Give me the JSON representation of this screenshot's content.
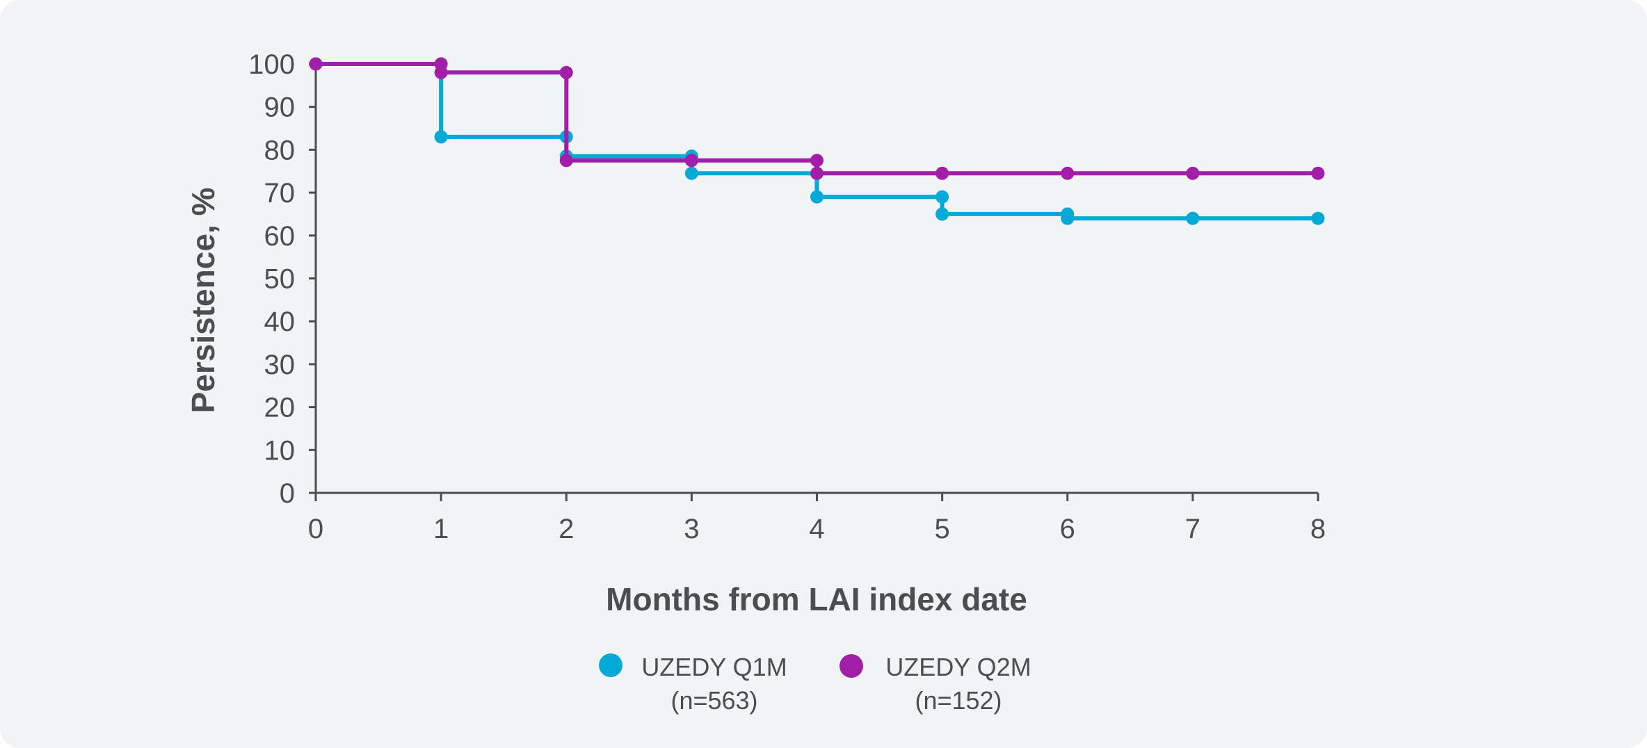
{
  "chart_data": {
    "type": "line",
    "step": true,
    "xlabel": "Months from LAI index date",
    "ylabel": "Persistence, %",
    "xlim": [
      0,
      8
    ],
    "ylim": [
      0,
      100
    ],
    "x_ticks": [
      "0",
      "1",
      "2",
      "3",
      "4",
      "5",
      "6",
      "7",
      "8"
    ],
    "y_ticks": [
      "0",
      "10",
      "20",
      "30",
      "40",
      "50",
      "60",
      "70",
      "80",
      "90",
      "100"
    ],
    "grid": false,
    "legend_position": "bottom-center",
    "series": [
      {
        "name": "UZEDY Q1M",
        "name_line2": "(n=563)",
        "color": "#05a9d6",
        "points": [
          [
            0,
            100
          ],
          [
            1,
            100
          ],
          [
            1,
            83
          ],
          [
            2,
            83
          ],
          [
            2,
            78.5
          ],
          [
            3,
            78.5
          ],
          [
            3,
            74.5
          ],
          [
            4,
            74.5
          ],
          [
            4,
            69
          ],
          [
            5,
            69
          ],
          [
            5,
            65
          ],
          [
            6,
            65
          ],
          [
            6,
            64
          ],
          [
            7,
            64
          ],
          [
            8,
            64
          ]
        ]
      },
      {
        "name": "UZEDY Q2M",
        "name_line2": "(n=152)",
        "color": "#a31ea8",
        "points": [
          [
            0,
            100
          ],
          [
            1,
            100
          ],
          [
            1,
            98
          ],
          [
            2,
            98
          ],
          [
            2,
            77.5
          ],
          [
            3,
            77.5
          ],
          [
            4,
            77.5
          ],
          [
            4,
            74.5
          ],
          [
            5,
            74.5
          ],
          [
            6,
            74.5
          ],
          [
            7,
            74.5
          ],
          [
            8,
            74.5
          ]
        ]
      }
    ]
  }
}
